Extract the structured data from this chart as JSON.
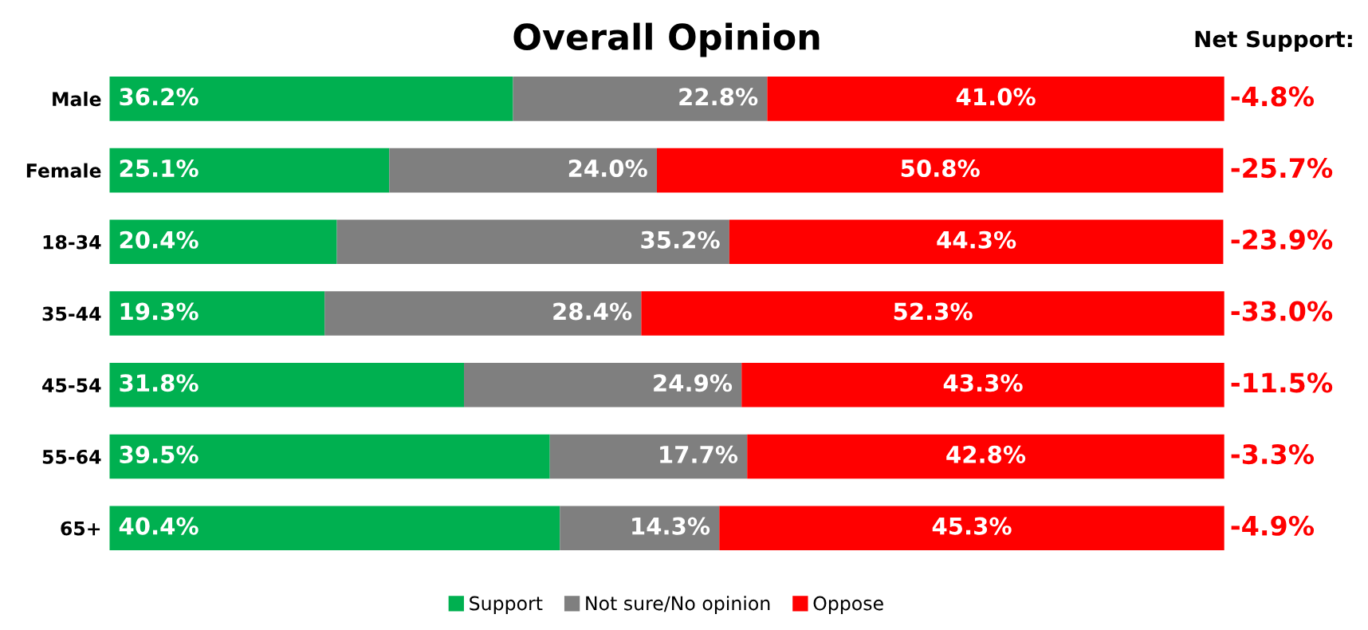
{
  "chart_data": {
    "type": "bar",
    "orientation": "horizontal",
    "stacked": true,
    "title": "Overall Opinion",
    "categories": [
      "Male",
      "Female",
      "18-34",
      "35-44",
      "45-54",
      "55-64",
      "65+"
    ],
    "series": [
      {
        "name": "Support",
        "color": "#00b050",
        "values": [
          36.2,
          25.1,
          20.4,
          19.3,
          31.8,
          39.5,
          40.4
        ],
        "value_labels": [
          "36.2%",
          "25.1%",
          "20.4%",
          "19.3%",
          "31.8%",
          "39.5%",
          "40.4%"
        ]
      },
      {
        "name": "Not sure/No opinion",
        "color": "#7f7f7f",
        "values": [
          22.8,
          24.0,
          35.2,
          28.4,
          24.9,
          17.7,
          14.3
        ],
        "value_labels": [
          "22.8%",
          "24.0%",
          "35.2%",
          "28.4%",
          "24.9%",
          "17.7%",
          "14.3%"
        ]
      },
      {
        "name": "Oppose",
        "color": "#ff0000",
        "values": [
          41.0,
          50.8,
          44.3,
          52.3,
          43.3,
          42.8,
          45.3
        ],
        "value_labels": [
          "41.0%",
          "50.8%",
          "44.3%",
          "52.3%",
          "43.3%",
          "42.8%",
          "45.3%"
        ]
      }
    ],
    "annotations": [
      "Net Support:",
      "-4.8%",
      "-25.7%",
      "-23.9%",
      "-33.0%",
      "-11.5%",
      "-3.3%",
      "-4.9%"
    ],
    "tick_labels": "y",
    "legend": "bottom",
    "grid": false
  }
}
